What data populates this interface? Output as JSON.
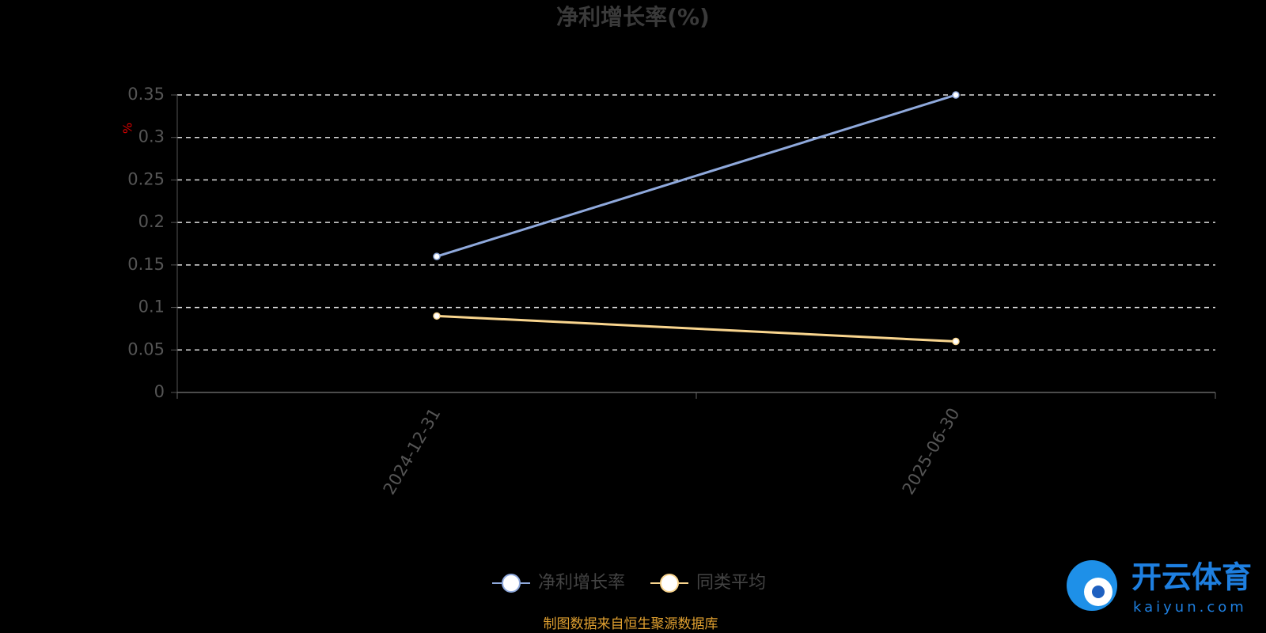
{
  "chart_data": {
    "type": "line",
    "title": "净利增长率(%)",
    "y_label": "%",
    "categories": [
      "2024-12-31",
      "2025-06-30"
    ],
    "series": [
      {
        "name": "净利增长率",
        "color": "#8fa9dc",
        "values": [
          0.16,
          0.35
        ]
      },
      {
        "name": "同类平均",
        "color": "#f9d58e",
        "values": [
          0.09,
          0.06
        ]
      }
    ],
    "ylim": [
      0,
      0.35
    ],
    "yticks": [
      0,
      0.05,
      0.1,
      0.15,
      0.2,
      0.25,
      0.3,
      0.35
    ],
    "grid": true,
    "legend": "bottom",
    "source": "制图数据来自恒生聚源数据库"
  },
  "watermark": {
    "brand": "开云体育",
    "site": "kaiyun.com"
  }
}
